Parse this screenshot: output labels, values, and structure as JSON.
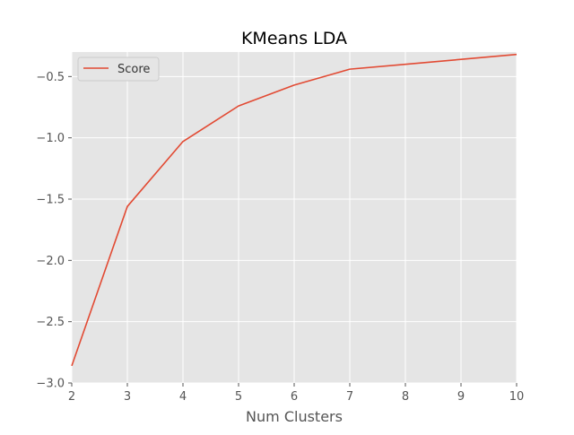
{
  "chart_data": {
    "type": "line",
    "title": "KMeans LDA",
    "xlabel": "Num Clusters",
    "ylabel": "",
    "x": [
      2,
      3,
      4,
      5,
      6,
      7,
      8,
      9,
      10
    ],
    "series": [
      {
        "name": "Score",
        "color": "#e24a33",
        "values": [
          -2.86,
          -1.56,
          -1.03,
          -0.74,
          -0.57,
          -0.44,
          -0.4,
          -0.36,
          -0.32
        ]
      }
    ],
    "xlim": [
      2,
      10
    ],
    "ylim": [
      -3.0,
      -0.3
    ],
    "xticks": [
      2,
      3,
      4,
      5,
      6,
      7,
      8,
      9,
      10
    ],
    "xtick_labels": [
      "2",
      "3",
      "4",
      "5",
      "6",
      "7",
      "8",
      "9",
      "10"
    ],
    "yticks": [
      -3.0,
      -2.5,
      -2.0,
      -1.5,
      -1.0,
      -0.5
    ],
    "ytick_labels": [
      "−3.0",
      "−2.5",
      "−2.0",
      "−1.5",
      "−1.0",
      "−0.5"
    ],
    "grid": true,
    "legend_position": "top-left",
    "plot_background": "#e5e5e5"
  }
}
